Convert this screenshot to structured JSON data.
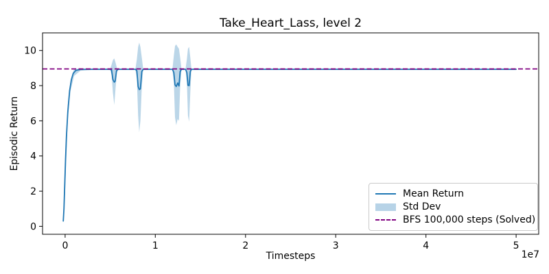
{
  "chart_data": {
    "type": "line",
    "title": "Take_Heart_Lass, level 2",
    "xlabel": "Timesteps",
    "ylabel": "Episodic Return",
    "x_offset_label": "1e7",
    "x_unit_multiplier": 10000000,
    "xlim": [
      -0.25,
      5.25
    ],
    "ylim": [
      -0.45,
      11.0
    ],
    "xticks": [
      0,
      1,
      2,
      3,
      4,
      5
    ],
    "yticks": [
      0,
      2,
      4,
      6,
      8,
      10
    ],
    "grid": false,
    "legend_position": "lower right",
    "hline": {
      "label": "BFS 100,000 steps (Solved)",
      "value": 8.95,
      "color": "#800080",
      "style": "dashed"
    },
    "series": [
      {
        "name": "Mean Return",
        "color": "#1f77b4",
        "points": [
          [
            -0.02,
            0.3
          ],
          [
            -0.013,
            1.0
          ],
          [
            -0.005,
            2.2
          ],
          [
            0.005,
            3.8
          ],
          [
            0.015,
            5.1
          ],
          [
            0.03,
            6.5
          ],
          [
            0.05,
            7.7
          ],
          [
            0.07,
            8.35
          ],
          [
            0.09,
            8.7
          ],
          [
            0.12,
            8.87
          ],
          [
            0.17,
            8.92
          ],
          [
            0.3,
            8.93
          ],
          [
            0.5,
            8.93
          ],
          [
            0.515,
            8.88
          ],
          [
            0.53,
            8.35
          ],
          [
            0.545,
            8.2
          ],
          [
            0.555,
            8.25
          ],
          [
            0.57,
            8.85
          ],
          [
            0.585,
            8.93
          ],
          [
            0.78,
            8.93
          ],
          [
            0.795,
            8.85
          ],
          [
            0.81,
            7.95
          ],
          [
            0.822,
            7.78
          ],
          [
            0.835,
            7.82
          ],
          [
            0.85,
            8.8
          ],
          [
            0.865,
            8.93
          ],
          [
            1.19,
            8.93
          ],
          [
            1.205,
            8.75
          ],
          [
            1.218,
            8.05
          ],
          [
            1.232,
            7.95
          ],
          [
            1.248,
            8.15
          ],
          [
            1.262,
            7.98
          ],
          [
            1.275,
            8.8
          ],
          [
            1.29,
            8.93
          ],
          [
            1.335,
            8.93
          ],
          [
            1.35,
            8.75
          ],
          [
            1.362,
            8.02
          ],
          [
            1.375,
            8.0
          ],
          [
            1.388,
            8.8
          ],
          [
            1.4,
            8.93
          ],
          [
            2.0,
            8.93
          ],
          [
            3.0,
            8.93
          ],
          [
            4.0,
            8.93
          ],
          [
            5.0,
            8.93
          ]
        ]
      },
      {
        "name": "Std Dev",
        "color": "#1f77b4",
        "alpha": 0.3,
        "band_points": [
          [
            -0.02,
            0.25,
            0.45
          ],
          [
            0.0,
            2.0,
            3.2
          ],
          [
            0.03,
            6.1,
            6.9
          ],
          [
            0.06,
            7.7,
            8.3
          ],
          [
            0.1,
            8.55,
            8.95
          ],
          [
            0.17,
            8.85,
            8.98
          ],
          [
            0.3,
            8.9,
            8.96
          ],
          [
            0.5,
            8.9,
            8.96
          ],
          [
            0.515,
            8.6,
            9.2
          ],
          [
            0.53,
            7.6,
            9.45
          ],
          [
            0.545,
            6.9,
            9.55
          ],
          [
            0.56,
            7.9,
            9.3
          ],
          [
            0.575,
            8.75,
            9.0
          ],
          [
            0.59,
            8.9,
            8.96
          ],
          [
            0.78,
            8.9,
            8.96
          ],
          [
            0.795,
            8.4,
            9.5
          ],
          [
            0.81,
            6.3,
            10.2
          ],
          [
            0.822,
            5.35,
            10.45
          ],
          [
            0.835,
            6.0,
            10.2
          ],
          [
            0.85,
            7.9,
            9.6
          ],
          [
            0.865,
            8.9,
            8.96
          ],
          [
            1.19,
            8.9,
            8.96
          ],
          [
            1.205,
            8.2,
            9.7
          ],
          [
            1.218,
            6.2,
            10.25
          ],
          [
            1.232,
            5.75,
            10.35
          ],
          [
            1.248,
            6.1,
            10.2
          ],
          [
            1.262,
            6.0,
            10.1
          ],
          [
            1.275,
            7.9,
            9.6
          ],
          [
            1.29,
            8.9,
            8.96
          ],
          [
            1.335,
            8.9,
            8.96
          ],
          [
            1.35,
            8.2,
            9.5
          ],
          [
            1.362,
            6.3,
            10.1
          ],
          [
            1.375,
            5.95,
            10.2
          ],
          [
            1.388,
            7.6,
            9.6
          ],
          [
            1.4,
            8.9,
            8.96
          ],
          [
            2.0,
            8.9,
            8.96
          ],
          [
            5.0,
            8.9,
            8.96
          ]
        ]
      }
    ]
  },
  "legend": {
    "items": [
      {
        "label": "Mean Return",
        "swatch": "line",
        "color": "#1f77b4"
      },
      {
        "label": "Std Dev",
        "swatch": "patch",
        "color": "#bcd6e8"
      },
      {
        "label": "BFS 100,000 steps (Solved)",
        "swatch": "dashed-line",
        "color": "#800080"
      }
    ]
  }
}
